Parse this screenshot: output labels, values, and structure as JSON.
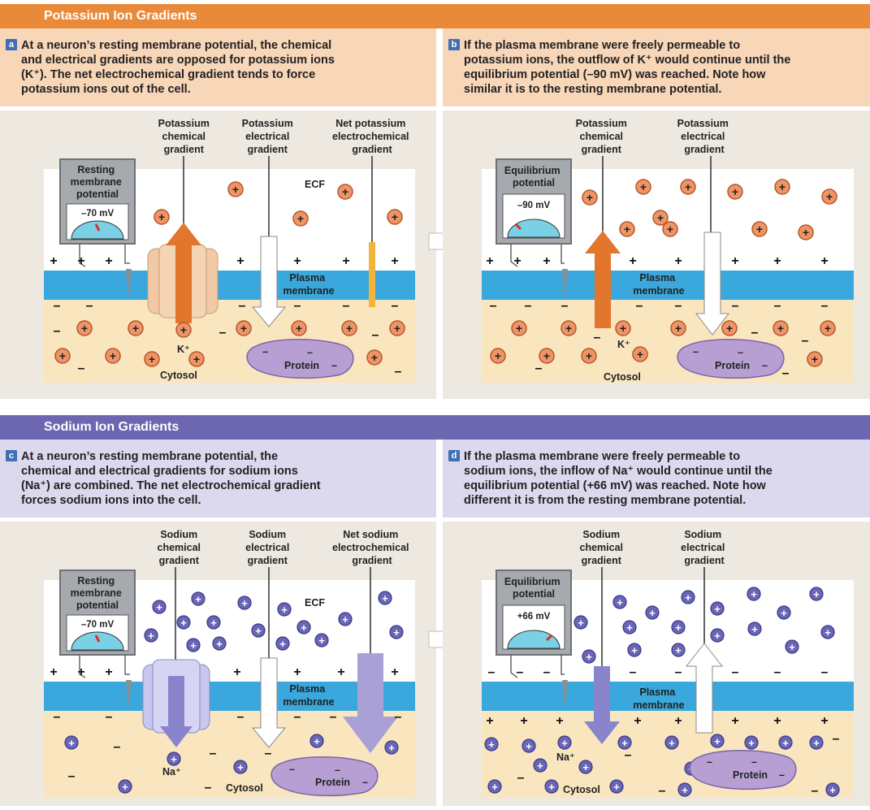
{
  "potassium": {
    "band_title": "Potassium Ion Gradients",
    "a": {
      "letter": "a",
      "caption": [
        "At a neuron’s resting membrane potential, the chemical",
        "and electrical gradients are opposed for potassium ions",
        "(K⁺). The net electrochemical gradient tends to force",
        "potassium ions out of the cell."
      ],
      "meter": [
        "Resting",
        "membrane",
        "potential"
      ],
      "meter_value": "–70 mV",
      "labels": {
        "chem": [
          "Potassium",
          "chemical",
          "gradient"
        ],
        "elec": [
          "Potassium",
          "electrical",
          "gradient"
        ],
        "net": [
          "Net potassium",
          "electrochemical",
          "gradient"
        ]
      },
      "ecf": "ECF",
      "membrane": [
        "Plasma",
        "membrane"
      ],
      "ion": "K⁺",
      "cytosol": "Cytosol",
      "protein": "Protein"
    },
    "b": {
      "letter": "b",
      "caption": [
        "If the plasma membrane were freely permeable to",
        "potassium ions, the outflow of K⁺ would continue until the",
        "equilibrium potential (–90 mV) was reached. Note how",
        "similar it is to the resting membrane potential."
      ],
      "meter": [
        "Equilibrium",
        "potential"
      ],
      "meter_value": "–90 mV",
      "labels": {
        "chem": [
          "Potassium",
          "chemical",
          "gradient"
        ],
        "elec": [
          "Potassium",
          "electrical",
          "gradient"
        ]
      },
      "membrane": [
        "Plasma",
        "membrane"
      ],
      "ion": "K⁺",
      "cytosol": "Cytosol",
      "protein": "Protein"
    }
  },
  "sodium": {
    "band_title": "Sodium Ion Gradients",
    "c": {
      "letter": "c",
      "caption": [
        "At a neuron’s resting membrane potential, the",
        "chemical and electrical gradients for sodium ions",
        "(Na⁺) are combined. The net electrochemical gradient",
        "forces sodium ions into the cell."
      ],
      "meter": [
        "Resting",
        "membrane",
        "potential"
      ],
      "meter_value": "–70 mV",
      "labels": {
        "chem": [
          "Sodium",
          "chemical",
          "gradient"
        ],
        "elec": [
          "Sodium",
          "electrical",
          "gradient"
        ],
        "net": [
          "Net sodium",
          "electrochemical",
          "gradient"
        ]
      },
      "ecf": "ECF",
      "membrane": [
        "Plasma",
        "membrane"
      ],
      "ion": "Na⁺",
      "cytosol": "Cytosol",
      "protein": "Protein"
    },
    "d": {
      "letter": "d",
      "caption": [
        "If the plasma membrane were freely permeable to",
        "sodium ions, the inflow of Na⁺ would continue until the",
        "equilibrium potential (+66 mV) was reached. Note how",
        "different it is from the resting membrane potential."
      ],
      "meter": [
        "Equilibrium",
        "potential"
      ],
      "meter_value": "+66 mV",
      "labels": {
        "chem": [
          "Sodium",
          "chemical",
          "gradient"
        ],
        "elec": [
          "Sodium",
          "electrical",
          "gradient"
        ]
      },
      "membrane": [
        "Plasma",
        "membrane"
      ],
      "ion": "Na⁺",
      "cytosol": "Cytosol",
      "protein": "Protein"
    }
  },
  "colors": {
    "potassium_band": "#e98a3a",
    "sodium_band": "#6c67b0",
    "k_caption_bg": "#f8d6b8",
    "na_caption_bg": "#dcd9ee",
    "membrane": "#3aa8dc",
    "cytosol": "#f9e6bf",
    "k_ion": "#ee9466",
    "na_ion": "#6a66b6",
    "protein": "#b79fd3",
    "k_chem_arrow": "#e2762c",
    "na_arrow": "#8a84cc"
  },
  "symbols": {
    "plus": "+",
    "minus": "–"
  }
}
